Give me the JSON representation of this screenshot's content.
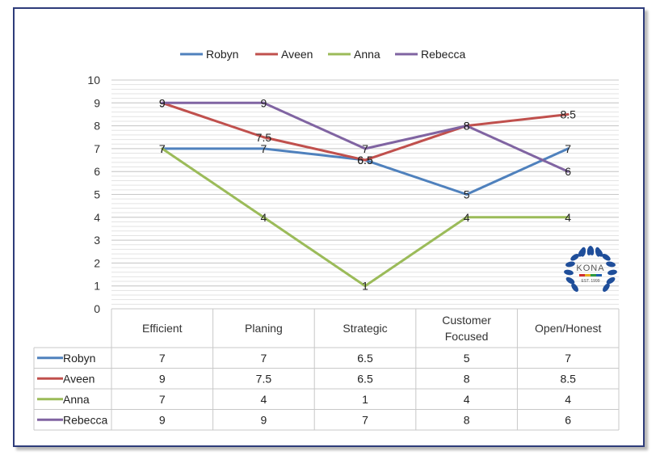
{
  "chart_data": {
    "type": "line",
    "categories": [
      "Efficient",
      "Planing",
      "Strategic",
      "Customer Focused",
      "Open/Honest"
    ],
    "category_lines": [
      [
        "Efficient"
      ],
      [
        "Planing"
      ],
      [
        "Strategic"
      ],
      [
        "Customer",
        "Focused"
      ],
      [
        "Open/Honest"
      ]
    ],
    "series": [
      {
        "name": "Robyn",
        "color": "#4f81bd",
        "values": [
          7,
          7,
          6.5,
          5,
          7
        ]
      },
      {
        "name": "Aveen",
        "color": "#c0504d",
        "values": [
          9,
          7.5,
          6.5,
          8,
          8.5
        ]
      },
      {
        "name": "Anna",
        "color": "#9bbb59",
        "values": [
          7,
          4,
          1,
          4,
          4
        ]
      },
      {
        "name": "Rebecca",
        "color": "#8064a2",
        "values": [
          9,
          9,
          7,
          8,
          6
        ]
      }
    ],
    "ylim": [
      0,
      10
    ],
    "yticks": [
      "0",
      "1",
      "2",
      "3",
      "4",
      "5",
      "6",
      "7",
      "8",
      "9",
      "10"
    ],
    "legend": "top",
    "grid": true,
    "data_table": true,
    "logo": {
      "text": "KONA",
      "subtext": "EST. 1999",
      "color": "#1f4e9a"
    }
  }
}
